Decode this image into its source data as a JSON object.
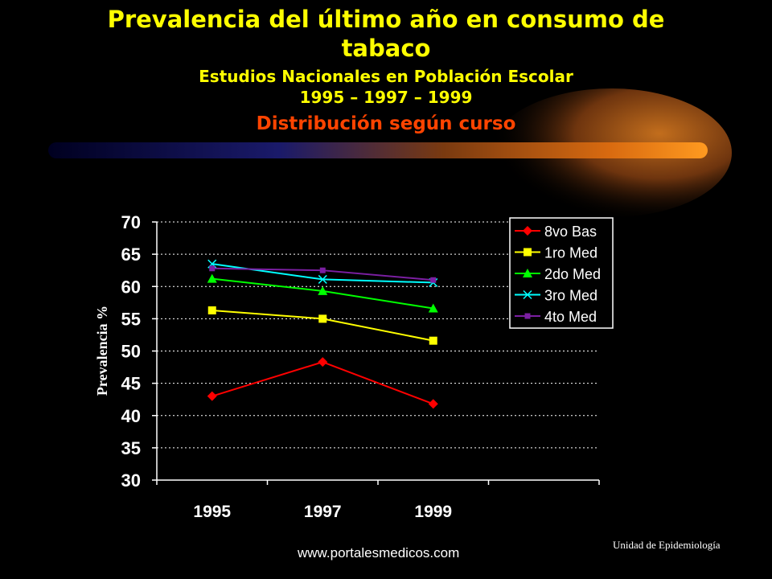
{
  "slide": {
    "title": "Prevalencia del último año en consumo de tabaco",
    "subtitle": "Estudios Nacionales en Población Escolar",
    "years": "1995 – 1997 – 1999",
    "distribution": "Distribución según curso",
    "footer_url": "www.portalesmedicos.com",
    "footer_unit": "Unidad de Epidemiología"
  },
  "chart_data": {
    "type": "line",
    "title": "",
    "xlabel": "",
    "ylabel": "Prevalencia %",
    "categories": [
      "1995",
      "1997",
      "1999"
    ],
    "ylim": [
      30,
      70
    ],
    "yticks": [
      30,
      35,
      40,
      45,
      50,
      55,
      60,
      65,
      70
    ],
    "grid": true,
    "legend_position": "top-right",
    "series": [
      {
        "name": "8vo Bas",
        "values": [
          43.0,
          48.3,
          41.8
        ],
        "color": "#FF0000",
        "marker": "diamond"
      },
      {
        "name": "1ro Med",
        "values": [
          56.3,
          55.0,
          51.6
        ],
        "color": "#FFFF00",
        "marker": "square"
      },
      {
        "name": "2do Med",
        "values": [
          61.2,
          59.3,
          56.6
        ],
        "color": "#00FF00",
        "marker": "triangle"
      },
      {
        "name": "3ro Med",
        "values": [
          63.5,
          61.1,
          60.6
        ],
        "color": "#00FFFF",
        "marker": "x"
      },
      {
        "name": "4to Med",
        "values": [
          62.8,
          62.5,
          61.0
        ],
        "color": "#7B1FA2",
        "marker": "small-square"
      }
    ]
  }
}
